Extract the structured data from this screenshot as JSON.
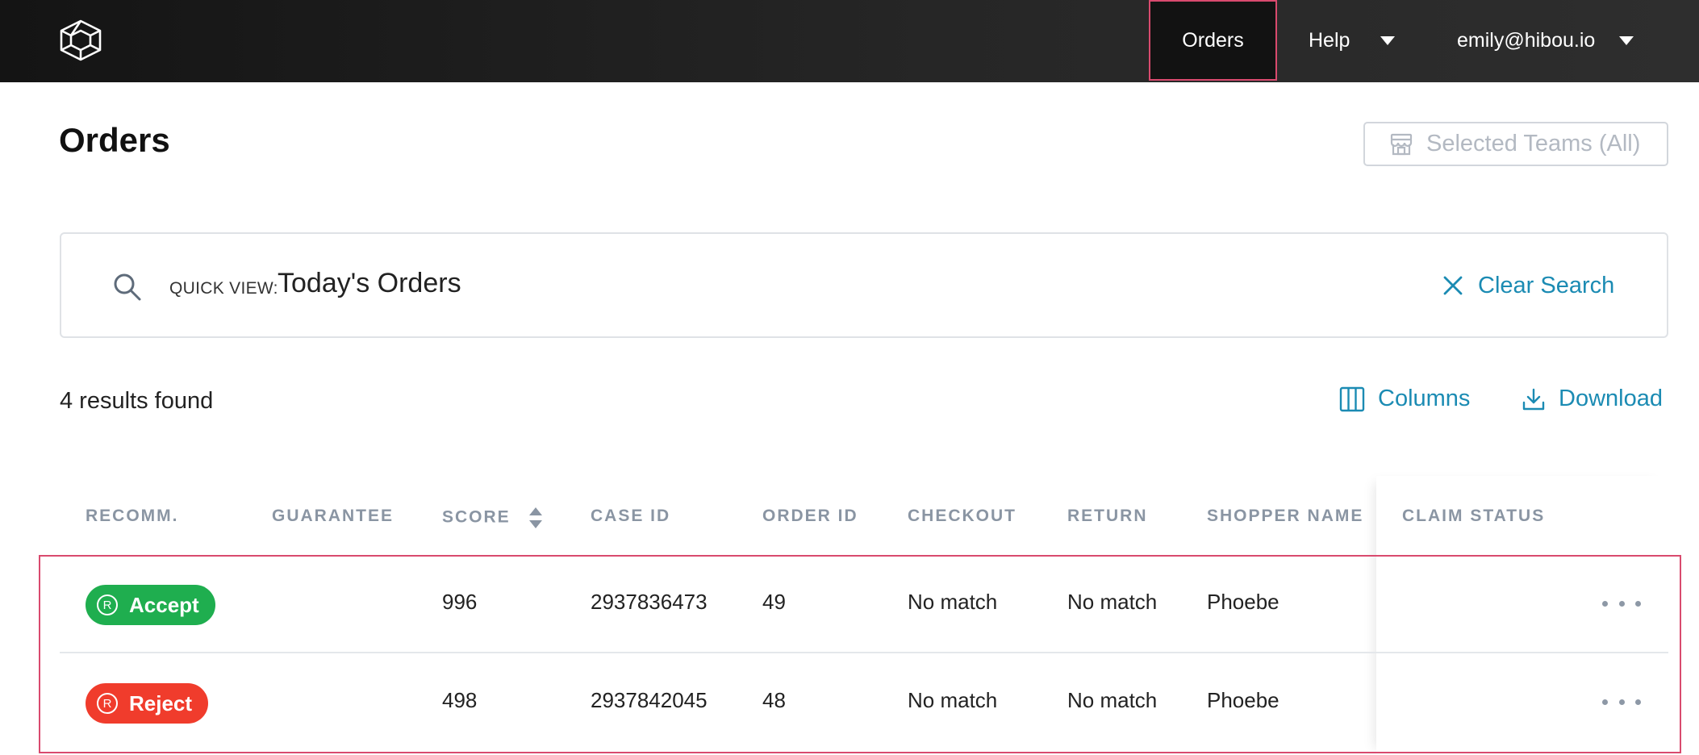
{
  "nav": {
    "orders_label": "Orders",
    "help_label": "Help",
    "user_email": "emily@hibou.io"
  },
  "page": {
    "title": "Orders",
    "teams_button": "Selected Teams (All)"
  },
  "search": {
    "quick_view_label": "QUICK VIEW:",
    "quick_view_value": "Today's Orders",
    "clear_label": "Clear Search"
  },
  "results": {
    "count_text": "4 results found",
    "columns_label": "Columns",
    "download_label": "Download"
  },
  "table": {
    "headers": {
      "recomm": "RECOMM.",
      "guarantee": "GUARANTEE",
      "score": "SCORE",
      "case_id": "CASE ID",
      "order_id": "ORDER ID",
      "checkout": "CHECKOUT",
      "return": "RETURN",
      "shopper_name": "SHOPPER NAME",
      "claim_status": "CLAIM STATUS"
    },
    "rows": [
      {
        "recommendation": "Accept",
        "badge_letter": "R",
        "guarantee": "",
        "score": "996",
        "case_id": "2937836473",
        "order_id": "49",
        "checkout": "No match",
        "return": "No match",
        "shopper_name": "Phoebe",
        "claim_status": ""
      },
      {
        "recommendation": "Reject",
        "badge_letter": "R",
        "guarantee": "",
        "score": "498",
        "case_id": "2937842045",
        "order_id": "48",
        "checkout": "No match",
        "return": "No match",
        "shopper_name": "Phoebe",
        "claim_status": ""
      }
    ]
  },
  "colors": {
    "accent": "#1b8bb3",
    "accept": "#1fae4f",
    "reject": "#f03c2c",
    "highlight": "#d94a6e"
  },
  "icons": {
    "logo": "cube-logo-icon",
    "search": "search-icon",
    "clear": "close-icon",
    "teams": "store-icon",
    "columns": "columns-icon",
    "download": "download-icon",
    "more": "more-horizontal-icon"
  }
}
